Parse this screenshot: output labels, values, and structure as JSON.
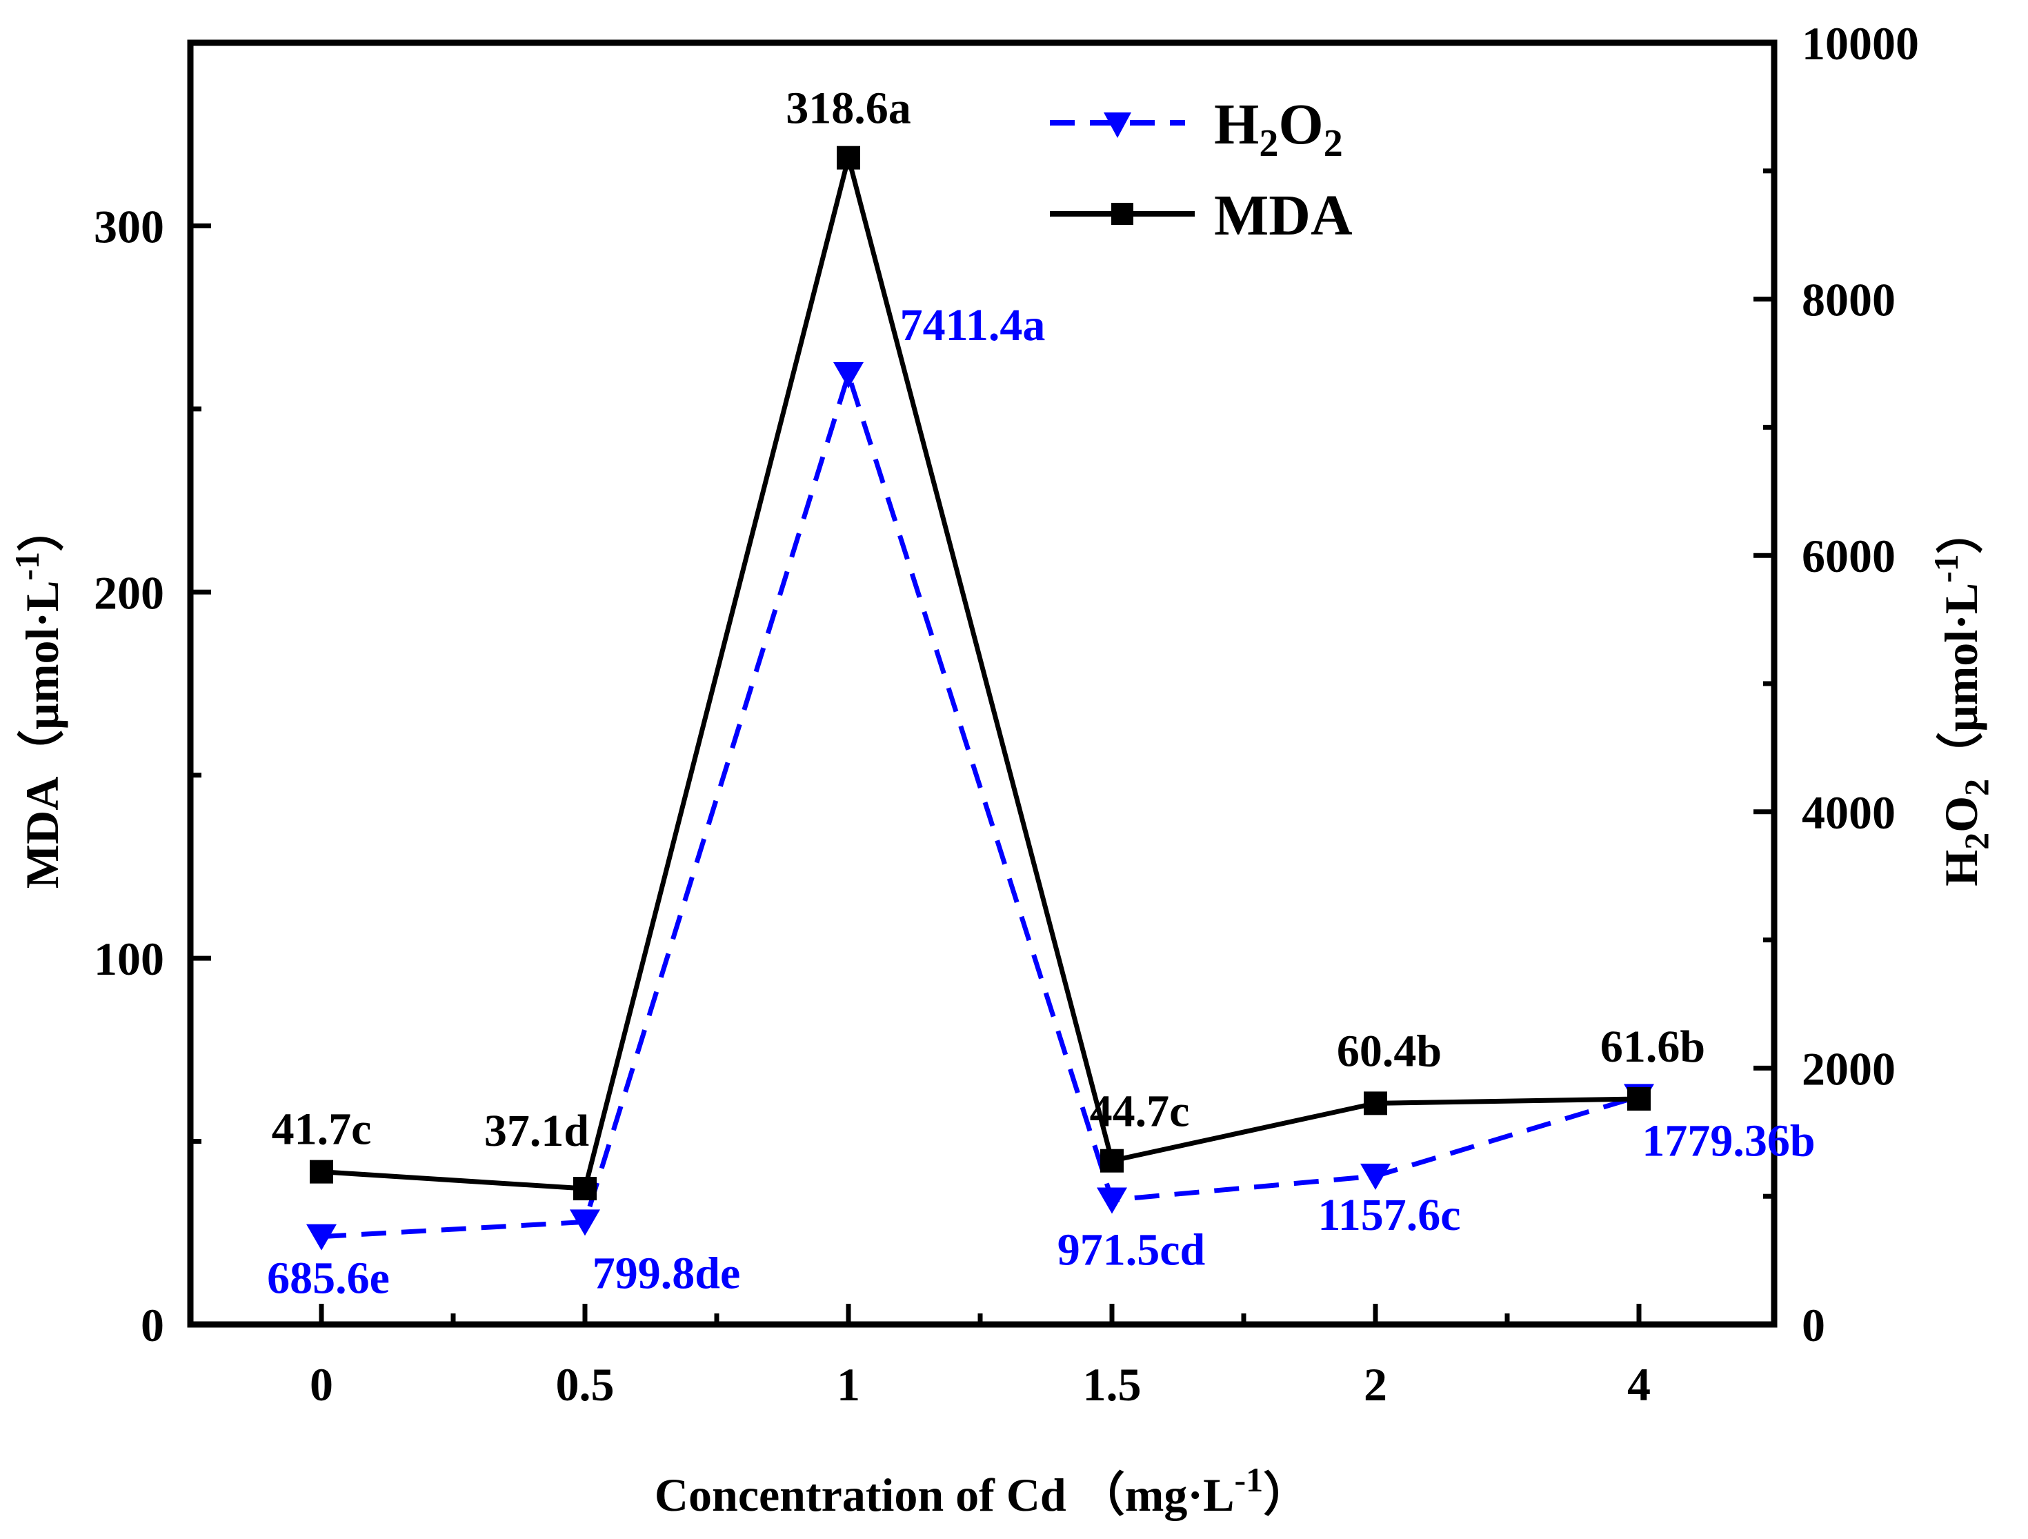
{
  "chart_data": {
    "type": "line",
    "dual_axis": true,
    "categories": [
      "0",
      "0.5",
      "1",
      "1.5",
      "2",
      "4"
    ],
    "xlabel": "Concentration of Cd （mg·L⁻¹）",
    "xlabel_parts": {
      "main": "Concentration of Cd （mg·L",
      "sup": "-1",
      "end": "）"
    },
    "ylabel_left": "MDA（μmol·L⁻¹）",
    "ylabel_left_parts": {
      "main": "MDA（μmol·L",
      "sup": "-1",
      "end": "）"
    },
    "ylabel_right": "H₂O₂（μmol·L⁻¹）",
    "ylabel_right_parts": {
      "main": "H",
      "sub1": "2",
      "mid": "O",
      "sub2": "2",
      "rest": "（μmol·L",
      "sup": "-1",
      "end": "）"
    },
    "ylim_left": [
      0,
      350
    ],
    "ylim_right": [
      0,
      10000
    ],
    "yticks_left": [
      "0",
      "100",
      "200",
      "300"
    ],
    "yticks_right": [
      "0",
      "2000",
      "4000",
      "6000",
      "8000",
      "10000"
    ],
    "series": [
      {
        "name": "MDA",
        "axis": "left",
        "color": "#000000",
        "line": "solid",
        "marker": "square",
        "values": [
          41.7,
          37.1,
          318.6,
          44.7,
          60.4,
          61.6
        ],
        "labels": [
          "41.7c",
          "37.1d",
          "318.6a",
          "44.7c",
          "60.4b",
          "61.6b"
        ]
      },
      {
        "name": "H2O2",
        "legend_parts": {
          "main": "H",
          "sub1": "2",
          "mid": "O",
          "sub2": "2"
        },
        "axis": "right",
        "color": "#0000ff",
        "line": "dashed",
        "marker": "triangle-down",
        "values": [
          685.6,
          799.8,
          7411.4,
          971.5,
          1157.6,
          1779.36
        ],
        "labels": [
          "685.6e",
          "799.8de",
          "7411.4a",
          "971.5cd",
          "1157.6c",
          "1779.36b"
        ]
      }
    ],
    "legend_position": "top-center"
  }
}
